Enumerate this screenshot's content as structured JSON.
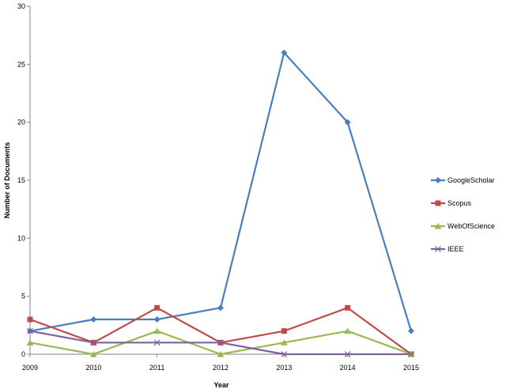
{
  "chart_data": {
    "type": "line",
    "title": "",
    "xlabel": "Year",
    "ylabel": "Number of Documents",
    "x": [
      "2009",
      "2010",
      "2011",
      "2012",
      "2013",
      "2014",
      "2015"
    ],
    "ylim": [
      0,
      30
    ],
    "yticks": [
      "0",
      "5",
      "10",
      "15",
      "20",
      "25",
      "30"
    ],
    "grid": false,
    "legend_position": "right",
    "series": [
      {
        "name": "GoogleScholar",
        "values": [
          2,
          3,
          3,
          4,
          26,
          20,
          2
        ],
        "color": "#4a7ebb",
        "marker": "diamond"
      },
      {
        "name": "Scopus",
        "values": [
          3,
          1,
          4,
          1,
          2,
          4,
          0
        ],
        "color": "#be4b48",
        "marker": "square"
      },
      {
        "name": "WebOfScience",
        "values": [
          1,
          0,
          2,
          0,
          1,
          2,
          0
        ],
        "color": "#98b954",
        "marker": "triangle"
      },
      {
        "name": "IEEE",
        "values": [
          2,
          1,
          1,
          1,
          0,
          0,
          0
        ],
        "color": "#7d60a0",
        "marker": "x"
      }
    ]
  }
}
